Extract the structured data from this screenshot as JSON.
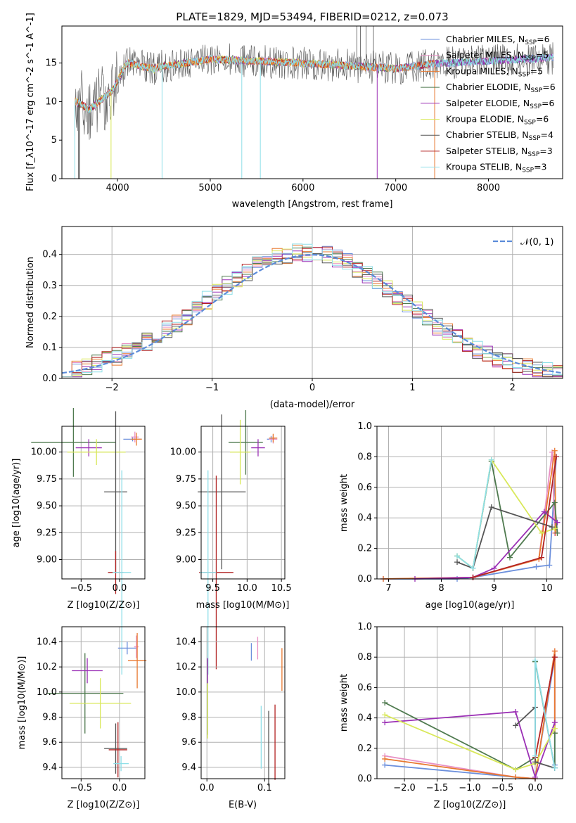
{
  "panel1": {
    "title": "PLATE=1829, MJD=53494, FIBERID=0212, z=0.073",
    "xlabel": "wavelength [Angstrom, rest frame]",
    "ylabel": "Flux [f_λ10^-17 erg cm^-2 s^-1 A^-1]",
    "xlim": [
      3400,
      8800
    ],
    "ylim": [
      0,
      19.8
    ],
    "xticks": [
      4000,
      5000,
      6000,
      7000,
      8000
    ],
    "yticks": [
      0,
      5,
      10,
      15
    ],
    "legend": [
      {
        "label": "Chabrier MILES, N",
        "sub": "SSP",
        "eq": "=6",
        "color": "#6b8fdc"
      },
      {
        "label": "Salpeter MILES, N",
        "sub": "SSP",
        "eq": "=5",
        "color": "#e88fc4"
      },
      {
        "label": "Kroupa MILES, N",
        "sub": "SSP",
        "eq": "=5",
        "color": "#e8782f"
      },
      {
        "label": "Chabrier ELODIE, N",
        "sub": "SSP",
        "eq": "=6",
        "color": "#4f7a4f"
      },
      {
        "label": "Salpeter ELODIE, N",
        "sub": "SSP",
        "eq": "=6",
        "color": "#9b30b5"
      },
      {
        "label": "Kroupa ELODIE, N",
        "sub": "SSP",
        "eq": "=6",
        "color": "#d9e85a"
      },
      {
        "label": "Chabrier STELIB, N",
        "sub": "SSP",
        "eq": "=4",
        "color": "#555555"
      },
      {
        "label": "Salpeter STELIB, N",
        "sub": "SSP",
        "eq": "=3",
        "color": "#b22222"
      },
      {
        "label": "Kroupa STELIB, N",
        "sub": "SSP",
        "eq": "=3",
        "color": "#8fdfe8"
      }
    ]
  },
  "panel2": {
    "xlabel": "(data-model)/error",
    "ylabel": "Normed distribution",
    "legend": "𝒩(0, 1)",
    "xlim": [
      -2.5,
      2.5
    ],
    "ylim": [
      0,
      0.49
    ],
    "xticks": [
      -2,
      -1,
      0,
      1,
      2
    ],
    "yticks": [
      0.0,
      0.1,
      0.2,
      0.3,
      0.4
    ]
  },
  "panel3": {
    "xlabel": "Z [log10(Z/Z⊙)]",
    "ylabel": "age  [log10(age/yr)]",
    "xticks": [
      "−0.5",
      "0.0"
    ],
    "yticks": [
      "9.00",
      "9.25",
      "9.50",
      "9.75",
      "10.00"
    ]
  },
  "panel4": {
    "xlabel": "mass [log10(M/M⊙)]",
    "xticks": [
      "9.5",
      "10.0",
      "10.5"
    ],
    "yticks": [
      "9.00",
      "9.25",
      "9.50",
      "9.75",
      "10.00"
    ]
  },
  "panel5": {
    "xlabel": "age  [log10(age/yr)]",
    "ylabel": "mass weight",
    "xticks": [
      "7",
      "8",
      "9",
      "10"
    ],
    "yticks": [
      "0.0",
      "0.2",
      "0.4",
      "0.6",
      "0.8",
      "1.0"
    ]
  },
  "panel6": {
    "xlabel": "Z [log10(Z/Z⊙)]",
    "ylabel": "mass [log10(M/M⊙)]",
    "xticks": [
      "−0.5",
      "0.0"
    ],
    "yticks": [
      "9.4",
      "9.6",
      "9.8",
      "10.0",
      "10.2",
      "10.4"
    ]
  },
  "panel7": {
    "xlabel": "E(B-V)",
    "xticks": [
      "0.0",
      "0.1"
    ],
    "yticks": [
      "9.4",
      "9.6",
      "9.8",
      "10.0",
      "10.2",
      "10.4"
    ]
  },
  "panel8": {
    "xlabel": "Z [log10(Z/Z⊙)]",
    "ylabel": "mass weight",
    "xticks": [
      "−2.0",
      "−1.5",
      "−1.0",
      "−0.5",
      "0.0"
    ],
    "yticks": [
      "0.0",
      "0.2",
      "0.4",
      "0.6",
      "0.8",
      "1.0"
    ]
  },
  "chart_data": [
    {
      "type": "line",
      "title": "PLATE=1829, MJD=53494, FIBERID=0212, z=0.073",
      "x_range": [
        3540,
        8700
      ],
      "approx_flux": [
        {
          "x": 3550,
          "y": 10
        },
        {
          "x": 3700,
          "y": 9
        },
        {
          "x": 3850,
          "y": 10
        },
        {
          "x": 3950,
          "y": 12
        },
        {
          "x": 4100,
          "y": 15
        },
        {
          "x": 4300,
          "y": 14.5
        },
        {
          "x": 4600,
          "y": 15.5
        },
        {
          "x": 5000,
          "y": 15.5
        },
        {
          "x": 5500,
          "y": 15
        },
        {
          "x": 6000,
          "y": 15.5
        },
        {
          "x": 6500,
          "y": 15
        },
        {
          "x": 7000,
          "y": 14.5
        },
        {
          "x": 7400,
          "y": 15
        },
        {
          "x": 8000,
          "y": 15.5
        },
        {
          "x": 8500,
          "y": 15.5
        },
        {
          "x": 8700,
          "y": 16
        }
      ]
    },
    {
      "type": "line",
      "series_name": "𝒩(0, 1)",
      "approx_hist_bins": [
        -2.5,
        2.5
      ]
    },
    {
      "type": "scatter",
      "description_series": [
        {
          "name": "Chabrier MILES",
          "color": "#6b8fdc",
          "Z": 0.17,
          "Zerr": 0.12,
          "age": 10.12,
          "ageerr": 0.02
        },
        {
          "name": "Salpeter MILES",
          "color": "#e88fc4",
          "Z": 0.2,
          "Zerr": 0.05,
          "age": 10.14,
          "ageerr": 0.05
        },
        {
          "name": "Kroupa MILES",
          "color": "#e8782f",
          "Z": 0.22,
          "Zerr": 0.07,
          "age": 10.12,
          "ageerr": 0.06
        },
        {
          "name": "Chabrier ELODIE",
          "color": "#4f7a4f",
          "Z": -0.6,
          "Zerr": 0.55,
          "age": 10.09,
          "ageerr": 0.32
        },
        {
          "name": "Salpeter ELODIE",
          "color": "#9b30b5",
          "Z": -0.4,
          "Zerr": 0.17,
          "age": 10.04,
          "ageerr": 0.08
        },
        {
          "name": "Kroupa ELODIE",
          "color": "#d9e85a",
          "Z": -0.3,
          "Zerr": 0.38,
          "age": 10.0,
          "ageerr": 0.12
        },
        {
          "name": "Chabrier STELIB",
          "color": "#555555",
          "Z": -0.05,
          "Zerr": 0.15,
          "age": 9.63,
          "ageerr": 0.75
        },
        {
          "name": "Salpeter STELIB",
          "color": "#b22222",
          "Z": -0.05,
          "Zerr": 0.1,
          "age": 8.88,
          "ageerr": 0.2
        },
        {
          "name": "Kroupa STELIB",
          "color": "#8fdfe8",
          "Z": 0.03,
          "Zerr": 0.12,
          "age": 8.88,
          "ageerr": 0.95
        }
      ]
    }
  ]
}
